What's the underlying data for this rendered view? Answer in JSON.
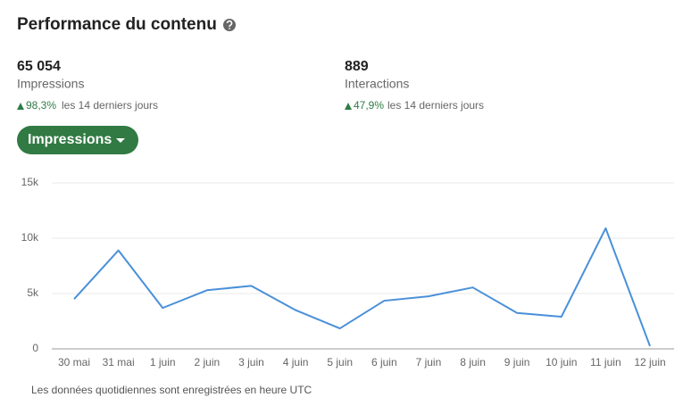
{
  "header": {
    "title": "Performance du contenu"
  },
  "metrics": [
    {
      "value": "65 054",
      "label": "Impressions",
      "change": "98,3%",
      "period": "les 14 derniers jours"
    },
    {
      "value": "889",
      "label": "Interactions",
      "change": "47,9%",
      "period": "les 14 derniers jours"
    }
  ],
  "dropdown": {
    "label": "Impressions"
  },
  "chart_data": {
    "type": "line",
    "categories": [
      "30 mai",
      "31 mai",
      "1 juin",
      "2 juin",
      "3 juin",
      "4 juin",
      "5 juin",
      "6 juin",
      "7 juin",
      "8 juin",
      "9 juin",
      "10 juin",
      "11 juin",
      "12 juin"
    ],
    "values": [
      4500,
      8900,
      3700,
      5300,
      5700,
      3500,
      1850,
      4350,
      4750,
      5550,
      3250,
      2900,
      10900,
      250
    ],
    "color": "#4a90d9",
    "ylim": [
      0,
      15000
    ],
    "yticks": [
      0,
      {
        "value": 5000,
        "label": "5k"
      },
      {
        "value": 10000,
        "label": "10k"
      },
      {
        "value": 15000,
        "label": "15k"
      }
    ],
    "grid": true
  },
  "footnote": "Les données quotidiennes sont enregistrées en heure UTC"
}
